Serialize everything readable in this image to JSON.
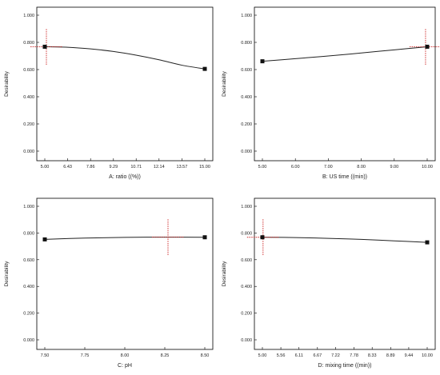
{
  "figure": {
    "colors": {
      "curve": "#222222",
      "marker": "#111111",
      "crosshair": "#cc2222",
      "frame": "#000000"
    }
  },
  "chart_data": [
    {
      "type": "line",
      "xlabel": "A: ratio ((%))",
      "ylabel": "Desirability",
      "x_ticks": [
        5.0,
        6.43,
        7.86,
        9.29,
        10.71,
        12.14,
        13.57,
        15.0
      ],
      "x_tick_labels": [
        "5.00",
        "6.43",
        "7.86",
        "9.29",
        "10.71",
        "12.14",
        "13.57",
        "15.00"
      ],
      "y_ticks": [
        0,
        0.2,
        0.4,
        0.6,
        0.8,
        1.0
      ],
      "y_tick_labels": [
        "0.000",
        "0.200",
        "0.400",
        "0.600",
        "0.800",
        "1.000"
      ],
      "xlim": [
        5.0,
        15.0
      ],
      "ylim": [
        0.0,
        1.0
      ],
      "x": [
        5.0,
        6.43,
        7.86,
        9.29,
        10.71,
        12.14,
        13.57,
        15.0
      ],
      "y": [
        0.768,
        0.764,
        0.752,
        0.733,
        0.706,
        0.672,
        0.632,
        0.605
      ],
      "endpoints": [
        [
          5.0,
          0.768
        ],
        [
          15.0,
          0.605
        ]
      ],
      "current": {
        "x": 5.1,
        "y": 0.768,
        "ci": [
          0.635,
          0.905
        ]
      }
    },
    {
      "type": "line",
      "xlabel": "B: US time ((min))",
      "ylabel": "Desirability",
      "x_ticks": [
        5.0,
        6.0,
        7.0,
        8.0,
        9.0,
        10.0
      ],
      "x_tick_labels": [
        "5.00",
        "6.00",
        "7.00",
        "8.00",
        "9.00",
        "10.00"
      ],
      "y_ticks": [
        0,
        0.2,
        0.4,
        0.6,
        0.8,
        1.0
      ],
      "y_tick_labels": [
        "0.000",
        "0.200",
        "0.400",
        "0.600",
        "0.800",
        "1.000"
      ],
      "xlim": [
        5.0,
        10.0
      ],
      "ylim": [
        0.0,
        1.0
      ],
      "x": [
        5.0,
        6.0,
        7.0,
        8.0,
        9.0,
        10.0
      ],
      "y": [
        0.661,
        0.68,
        0.7,
        0.722,
        0.745,
        0.768
      ],
      "endpoints": [
        [
          5.0,
          0.661
        ],
        [
          10.0,
          0.768
        ]
      ],
      "current": {
        "x": 9.95,
        "y": 0.768,
        "ci": [
          0.635,
          0.905
        ]
      }
    },
    {
      "type": "line",
      "xlabel": "C: pH",
      "ylabel": "Desirability",
      "x_ticks": [
        7.5,
        7.75,
        8.0,
        8.25,
        8.5
      ],
      "x_tick_labels": [
        "7.50",
        "7.75",
        "8.00",
        "8.25",
        "8.50"
      ],
      "y_ticks": [
        0,
        0.2,
        0.4,
        0.6,
        0.8,
        1.0
      ],
      "y_tick_labels": [
        "0.000",
        "0.200",
        "0.400",
        "0.600",
        "0.800",
        "1.000"
      ],
      "xlim": [
        7.5,
        8.5
      ],
      "ylim": [
        0.0,
        1.0
      ],
      "x": [
        7.5,
        7.75,
        8.0,
        8.25,
        8.5
      ],
      "y": [
        0.752,
        0.762,
        0.767,
        0.769,
        0.768
      ],
      "endpoints": [
        [
          7.5,
          0.752
        ],
        [
          8.5,
          0.768
        ]
      ],
      "current": {
        "x": 8.27,
        "y": 0.769,
        "ci": [
          0.635,
          0.905
        ]
      }
    },
    {
      "type": "line",
      "xlabel": "D: mixing time ((min))",
      "ylabel": "Desirability",
      "x_ticks": [
        5.0,
        5.56,
        6.11,
        6.67,
        7.22,
        7.78,
        8.33,
        8.89,
        9.44,
        10.0
      ],
      "x_tick_labels": [
        "5.00",
        "5.56",
        "6.11",
        "6.67",
        "7.22",
        "7.78",
        "8.33",
        "8.89",
        "9.44",
        "10.00"
      ],
      "y_ticks": [
        0,
        0.2,
        0.4,
        0.6,
        0.8,
        1.0
      ],
      "y_tick_labels": [
        "0.000",
        "0.200",
        "0.400",
        "0.600",
        "0.800",
        "1.000"
      ],
      "xlim": [
        5.0,
        10.0
      ],
      "ylim": [
        0.0,
        1.0
      ],
      "x": [
        5.0,
        6.0,
        7.0,
        8.0,
        9.0,
        10.0
      ],
      "y": [
        0.768,
        0.766,
        0.76,
        0.752,
        0.741,
        0.73
      ],
      "endpoints": [
        [
          5.0,
          0.768
        ],
        [
          10.0,
          0.73
        ]
      ],
      "current": {
        "x": 5.02,
        "y": 0.768,
        "ci": [
          0.635,
          0.905
        ]
      }
    }
  ]
}
